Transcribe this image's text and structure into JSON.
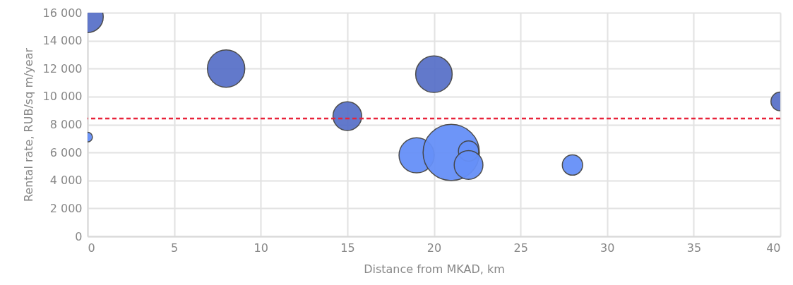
{
  "chart_data": {
    "type": "bubble",
    "xlabel": "Distance from MKAD, km",
    "ylabel": "Rental rate, RUB/sq m/year",
    "xlim": [
      0,
      40
    ],
    "xticks": [
      0,
      5,
      10,
      15,
      20,
      25,
      30,
      35,
      40
    ],
    "ylim": [
      0,
      16000
    ],
    "yticks": [
      0,
      {
        "value": 2000,
        "label": "2 000"
      },
      {
        "value": 4000,
        "label": "4 000"
      },
      {
        "value": 6000,
        "label": "6 000"
      },
      {
        "value": 8000,
        "label": "8 000"
      },
      {
        "value": 10000,
        "label": "10 000"
      },
      {
        "value": 12000,
        "label": "12 000"
      },
      {
        "value": 14000,
        "label": "14 000"
      },
      {
        "value": 16000,
        "label": "16 000"
      }
    ],
    "grid": true,
    "series": [
      {
        "color": "#5a72c9",
        "x": [
          0,
          8,
          15,
          20,
          40
        ],
        "values": [
          15700,
          12000,
          8600,
          11600,
          9650
        ],
        "sizes": [
          0.31,
          0.44,
          0.26,
          0.42,
          0.11
        ]
      },
      {
        "color": "#6690f8",
        "x": [
          0,
          19,
          21,
          22,
          22,
          28
        ],
        "values": [
          7100,
          5800,
          6000,
          6100,
          5100,
          5100
        ],
        "sizes": [
          0.03,
          0.39,
          1,
          0.13,
          0.26,
          0.13
        ]
      }
    ],
    "ref_lines": [
      {
        "axis": "y",
        "value": 8430,
        "color": "#e8233a",
        "line_style": "dashed"
      }
    ]
  }
}
